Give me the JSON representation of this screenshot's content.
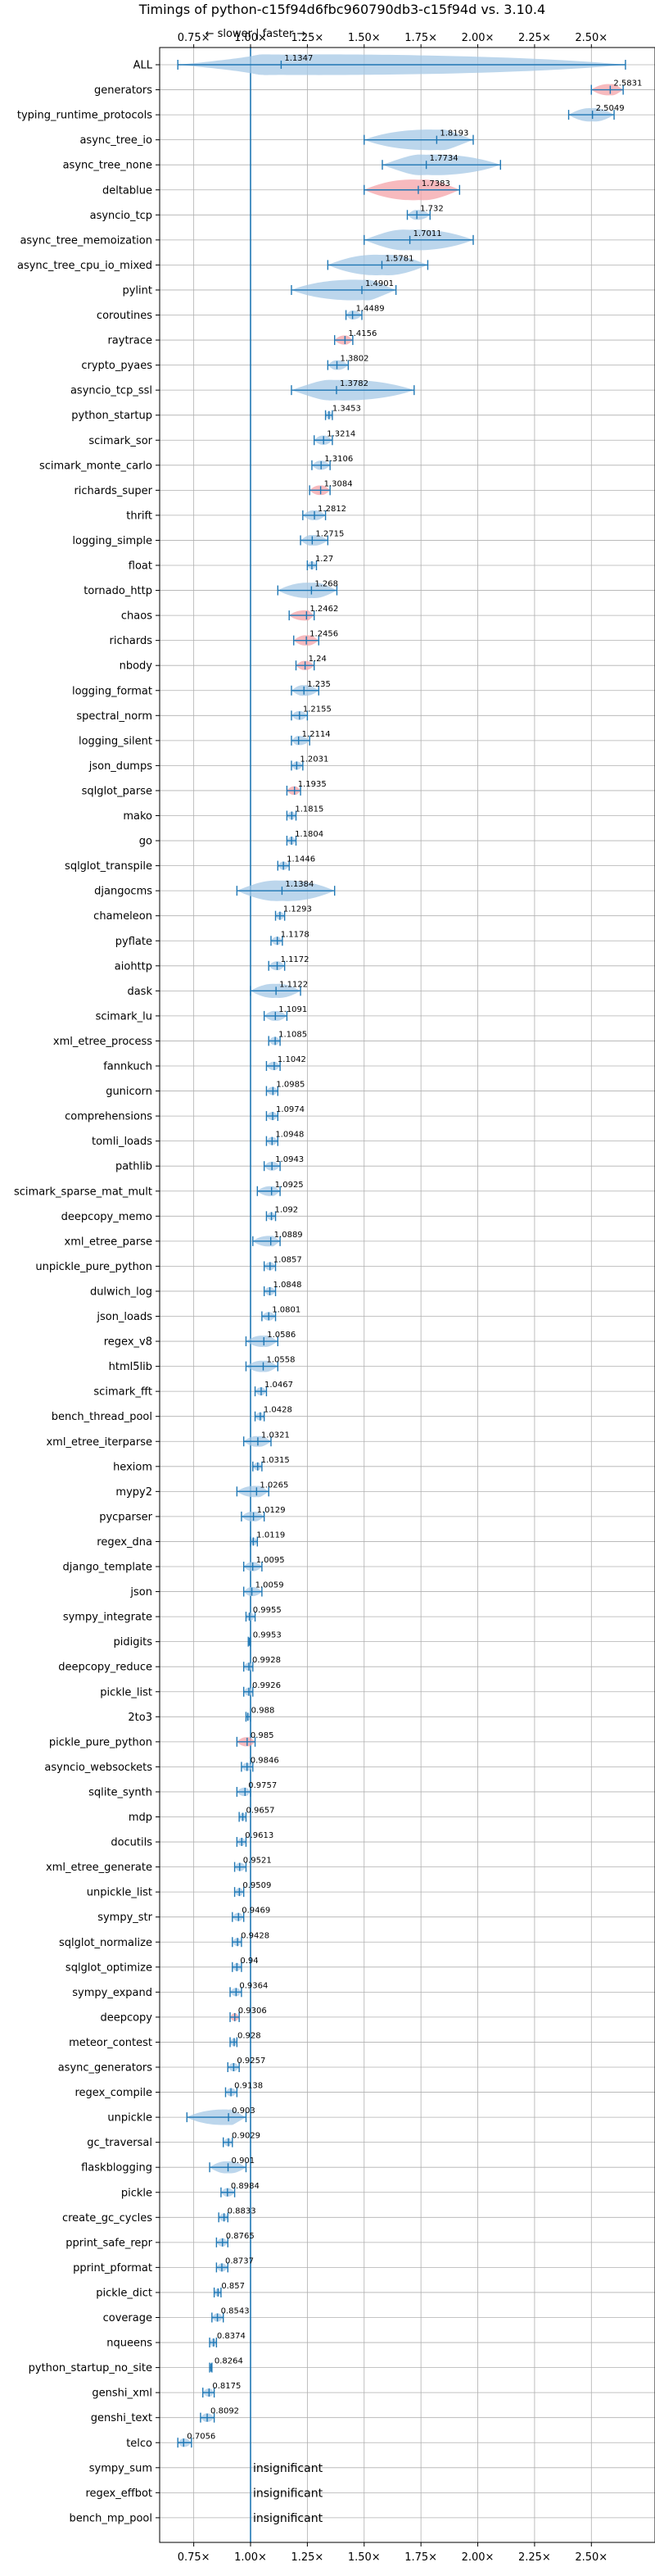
{
  "chart_data": {
    "type": "violin",
    "title": "Timings of python-c15f94d6fbc960790db3-c15f94d vs. 3.10.4",
    "direction_note": "← slower | faster →",
    "xlim": [
      0.6,
      2.78
    ],
    "x_ticks": [
      0.75,
      1.0,
      1.25,
      1.5,
      1.75,
      2.0,
      2.25,
      2.5
    ],
    "x_tick_labels": [
      "0.75×",
      "1.00×",
      "1.25×",
      "1.50×",
      "1.75×",
      "2.00×",
      "2.25×",
      "2.50×"
    ],
    "reference_line": 1.0,
    "grid": true,
    "colors": {
      "faster": "#1f77b4",
      "fill": "#a6c8e6",
      "slower_fill": "#f4a3a8",
      "reference": "#1f77b4"
    },
    "insignificant_text": "insignificant",
    "benchmarks": [
      {
        "name": "ALL",
        "value": 1.1347,
        "lo": 0.68,
        "hi": 2.65,
        "slower": false
      },
      {
        "name": "generators",
        "value": 2.5831,
        "lo": 2.5,
        "hi": 2.64,
        "slower": true
      },
      {
        "name": "typing_runtime_protocols",
        "value": 2.5049,
        "lo": 2.4,
        "hi": 2.6,
        "slower": false
      },
      {
        "name": "async_tree_io",
        "value": 1.8193,
        "lo": 1.5,
        "hi": 1.98,
        "slower": false
      },
      {
        "name": "async_tree_none",
        "value": 1.7734,
        "lo": 1.58,
        "hi": 2.1,
        "slower": false
      },
      {
        "name": "deltablue",
        "value": 1.7383,
        "lo": 1.5,
        "hi": 1.92,
        "slower": true
      },
      {
        "name": "asyncio_tcp",
        "value": 1.732,
        "lo": 1.69,
        "hi": 1.79,
        "slower": false
      },
      {
        "name": "async_tree_memoization",
        "value": 1.7011,
        "lo": 1.5,
        "hi": 1.98,
        "slower": false
      },
      {
        "name": "async_tree_cpu_io_mixed",
        "value": 1.5781,
        "lo": 1.34,
        "hi": 1.78,
        "slower": false
      },
      {
        "name": "pylint",
        "value": 1.4901,
        "lo": 1.18,
        "hi": 1.64,
        "slower": false
      },
      {
        "name": "coroutines",
        "value": 1.4489,
        "lo": 1.42,
        "hi": 1.49,
        "slower": false
      },
      {
        "name": "raytrace",
        "value": 1.4156,
        "lo": 1.37,
        "hi": 1.45,
        "slower": true
      },
      {
        "name": "crypto_pyaes",
        "value": 1.3802,
        "lo": 1.34,
        "hi": 1.43,
        "slower": false
      },
      {
        "name": "asyncio_tcp_ssl",
        "value": 1.3782,
        "lo": 1.18,
        "hi": 1.72,
        "slower": false
      },
      {
        "name": "python_startup",
        "value": 1.3453,
        "lo": 1.33,
        "hi": 1.36,
        "slower": false
      },
      {
        "name": "scimark_sor",
        "value": 1.3214,
        "lo": 1.28,
        "hi": 1.36,
        "slower": false
      },
      {
        "name": "scimark_monte_carlo",
        "value": 1.3106,
        "lo": 1.27,
        "hi": 1.35,
        "slower": false
      },
      {
        "name": "richards_super",
        "value": 1.3084,
        "lo": 1.26,
        "hi": 1.35,
        "slower": true
      },
      {
        "name": "thrift",
        "value": 1.2812,
        "lo": 1.23,
        "hi": 1.33,
        "slower": false
      },
      {
        "name": "logging_simple",
        "value": 1.2715,
        "lo": 1.22,
        "hi": 1.34,
        "slower": false
      },
      {
        "name": "float",
        "value": 1.27,
        "lo": 1.25,
        "hi": 1.29,
        "slower": false
      },
      {
        "name": "tornado_http",
        "value": 1.268,
        "lo": 1.12,
        "hi": 1.38,
        "slower": false
      },
      {
        "name": "chaos",
        "value": 1.2462,
        "lo": 1.17,
        "hi": 1.28,
        "slower": true
      },
      {
        "name": "richards",
        "value": 1.2456,
        "lo": 1.19,
        "hi": 1.3,
        "slower": true
      },
      {
        "name": "nbody",
        "value": 1.24,
        "lo": 1.2,
        "hi": 1.28,
        "slower": true
      },
      {
        "name": "logging_format",
        "value": 1.235,
        "lo": 1.18,
        "hi": 1.3,
        "slower": false
      },
      {
        "name": "spectral_norm",
        "value": 1.2155,
        "lo": 1.18,
        "hi": 1.25,
        "slower": false
      },
      {
        "name": "logging_silent",
        "value": 1.2114,
        "lo": 1.18,
        "hi": 1.26,
        "slower": false
      },
      {
        "name": "json_dumps",
        "value": 1.2031,
        "lo": 1.18,
        "hi": 1.23,
        "slower": false
      },
      {
        "name": "sqlglot_parse",
        "value": 1.1935,
        "lo": 1.16,
        "hi": 1.22,
        "slower": true
      },
      {
        "name": "mako",
        "value": 1.1815,
        "lo": 1.16,
        "hi": 1.2,
        "slower": false
      },
      {
        "name": "go",
        "value": 1.1804,
        "lo": 1.16,
        "hi": 1.2,
        "slower": false
      },
      {
        "name": "sqlglot_transpile",
        "value": 1.1446,
        "lo": 1.12,
        "hi": 1.17,
        "slower": false
      },
      {
        "name": "djangocms",
        "value": 1.1384,
        "lo": 0.94,
        "hi": 1.37,
        "slower": false
      },
      {
        "name": "chameleon",
        "value": 1.1293,
        "lo": 1.11,
        "hi": 1.15,
        "slower": false
      },
      {
        "name": "pyflate",
        "value": 1.1178,
        "lo": 1.09,
        "hi": 1.14,
        "slower": false
      },
      {
        "name": "aiohttp",
        "value": 1.1172,
        "lo": 1.08,
        "hi": 1.15,
        "slower": false
      },
      {
        "name": "dask",
        "value": 1.1122,
        "lo": 1.0,
        "hi": 1.22,
        "slower": false
      },
      {
        "name": "scimark_lu",
        "value": 1.1091,
        "lo": 1.06,
        "hi": 1.16,
        "slower": false
      },
      {
        "name": "xml_etree_process",
        "value": 1.1085,
        "lo": 1.08,
        "hi": 1.13,
        "slower": false
      },
      {
        "name": "fannkuch",
        "value": 1.1042,
        "lo": 1.07,
        "hi": 1.13,
        "slower": false
      },
      {
        "name": "gunicorn",
        "value": 1.0985,
        "lo": 1.07,
        "hi": 1.12,
        "slower": false
      },
      {
        "name": "comprehensions",
        "value": 1.0974,
        "lo": 1.07,
        "hi": 1.12,
        "slower": false
      },
      {
        "name": "tomli_loads",
        "value": 1.0948,
        "lo": 1.07,
        "hi": 1.12,
        "slower": false
      },
      {
        "name": "pathlib",
        "value": 1.0943,
        "lo": 1.06,
        "hi": 1.13,
        "slower": false
      },
      {
        "name": "scimark_sparse_mat_mult",
        "value": 1.0925,
        "lo": 1.03,
        "hi": 1.13,
        "slower": false
      },
      {
        "name": "deepcopy_memo",
        "value": 1.092,
        "lo": 1.07,
        "hi": 1.11,
        "slower": false
      },
      {
        "name": "xml_etree_parse",
        "value": 1.0889,
        "lo": 1.01,
        "hi": 1.13,
        "slower": false
      },
      {
        "name": "unpickle_pure_python",
        "value": 1.0857,
        "lo": 1.06,
        "hi": 1.11,
        "slower": false
      },
      {
        "name": "dulwich_log",
        "value": 1.0848,
        "lo": 1.06,
        "hi": 1.11,
        "slower": false
      },
      {
        "name": "json_loads",
        "value": 1.0801,
        "lo": 1.05,
        "hi": 1.11,
        "slower": false
      },
      {
        "name": "regex_v8",
        "value": 1.0586,
        "lo": 0.98,
        "hi": 1.12,
        "slower": false
      },
      {
        "name": "html5lib",
        "value": 1.0558,
        "lo": 0.98,
        "hi": 1.12,
        "slower": false
      },
      {
        "name": "scimark_fft",
        "value": 1.0467,
        "lo": 1.02,
        "hi": 1.07,
        "slower": false
      },
      {
        "name": "bench_thread_pool",
        "value": 1.0428,
        "lo": 1.02,
        "hi": 1.06,
        "slower": false
      },
      {
        "name": "xml_etree_iterparse",
        "value": 1.0321,
        "lo": 0.97,
        "hi": 1.09,
        "slower": false
      },
      {
        "name": "hexiom",
        "value": 1.0315,
        "lo": 1.01,
        "hi": 1.05,
        "slower": false
      },
      {
        "name": "mypy2",
        "value": 1.0265,
        "lo": 0.94,
        "hi": 1.08,
        "slower": false
      },
      {
        "name": "pycparser",
        "value": 1.0129,
        "lo": 0.96,
        "hi": 1.06,
        "slower": false
      },
      {
        "name": "regex_dna",
        "value": 1.0119,
        "lo": 1.0,
        "hi": 1.03,
        "slower": false
      },
      {
        "name": "django_template",
        "value": 1.0095,
        "lo": 0.97,
        "hi": 1.05,
        "slower": false
      },
      {
        "name": "json",
        "value": 1.0059,
        "lo": 0.97,
        "hi": 1.05,
        "slower": false
      },
      {
        "name": "sympy_integrate",
        "value": 0.9955,
        "lo": 0.98,
        "hi": 1.02,
        "slower": false
      },
      {
        "name": "pidigits",
        "value": 0.9953,
        "lo": 0.99,
        "hi": 1.0,
        "slower": false
      },
      {
        "name": "deepcopy_reduce",
        "value": 0.9928,
        "lo": 0.97,
        "hi": 1.01,
        "slower": false
      },
      {
        "name": "pickle_list",
        "value": 0.9926,
        "lo": 0.97,
        "hi": 1.01,
        "slower": false
      },
      {
        "name": "2to3",
        "value": 0.988,
        "lo": 0.98,
        "hi": 1.0,
        "slower": false
      },
      {
        "name": "pickle_pure_python",
        "value": 0.985,
        "lo": 0.94,
        "hi": 1.02,
        "slower": true
      },
      {
        "name": "asyncio_websockets",
        "value": 0.9846,
        "lo": 0.96,
        "hi": 1.01,
        "slower": false
      },
      {
        "name": "sqlite_synth",
        "value": 0.9757,
        "lo": 0.94,
        "hi": 1.0,
        "slower": false
      },
      {
        "name": "mdp",
        "value": 0.9657,
        "lo": 0.95,
        "hi": 0.98,
        "slower": false
      },
      {
        "name": "docutils",
        "value": 0.9613,
        "lo": 0.94,
        "hi": 0.98,
        "slower": false
      },
      {
        "name": "xml_etree_generate",
        "value": 0.9521,
        "lo": 0.93,
        "hi": 0.98,
        "slower": false
      },
      {
        "name": "unpickle_list",
        "value": 0.9509,
        "lo": 0.93,
        "hi": 0.97,
        "slower": false
      },
      {
        "name": "sympy_str",
        "value": 0.9469,
        "lo": 0.92,
        "hi": 0.97,
        "slower": false
      },
      {
        "name": "sqlglot_normalize",
        "value": 0.9428,
        "lo": 0.92,
        "hi": 0.96,
        "slower": false
      },
      {
        "name": "sqlglot_optimize",
        "value": 0.94,
        "lo": 0.92,
        "hi": 0.96,
        "slower": false
      },
      {
        "name": "sympy_expand",
        "value": 0.9364,
        "lo": 0.91,
        "hi": 0.96,
        "slower": false
      },
      {
        "name": "deepcopy",
        "value": 0.9306,
        "lo": 0.91,
        "hi": 0.95,
        "slower": true
      },
      {
        "name": "meteor_contest",
        "value": 0.928,
        "lo": 0.91,
        "hi": 0.94,
        "slower": false
      },
      {
        "name": "async_generators",
        "value": 0.9257,
        "lo": 0.9,
        "hi": 0.95,
        "slower": false
      },
      {
        "name": "regex_compile",
        "value": 0.9138,
        "lo": 0.89,
        "hi": 0.94,
        "slower": false
      },
      {
        "name": "unpickle",
        "value": 0.903,
        "lo": 0.72,
        "hi": 0.98,
        "slower": false
      },
      {
        "name": "gc_traversal",
        "value": 0.9029,
        "lo": 0.88,
        "hi": 0.92,
        "slower": false
      },
      {
        "name": "flaskblogging",
        "value": 0.901,
        "lo": 0.82,
        "hi": 0.98,
        "slower": false
      },
      {
        "name": "pickle",
        "value": 0.8984,
        "lo": 0.87,
        "hi": 0.93,
        "slower": false
      },
      {
        "name": "create_gc_cycles",
        "value": 0.8833,
        "lo": 0.86,
        "hi": 0.9,
        "slower": false
      },
      {
        "name": "pprint_safe_repr",
        "value": 0.8765,
        "lo": 0.85,
        "hi": 0.9,
        "slower": false
      },
      {
        "name": "pprint_pformat",
        "value": 0.8737,
        "lo": 0.85,
        "hi": 0.9,
        "slower": false
      },
      {
        "name": "pickle_dict",
        "value": 0.857,
        "lo": 0.84,
        "hi": 0.87,
        "slower": false
      },
      {
        "name": "coverage",
        "value": 0.8543,
        "lo": 0.83,
        "hi": 0.88,
        "slower": false
      },
      {
        "name": "nqueens",
        "value": 0.8374,
        "lo": 0.82,
        "hi": 0.85,
        "slower": false
      },
      {
        "name": "python_startup_no_site",
        "value": 0.8264,
        "lo": 0.82,
        "hi": 0.83,
        "slower": false
      },
      {
        "name": "genshi_xml",
        "value": 0.8175,
        "lo": 0.79,
        "hi": 0.84,
        "slower": false
      },
      {
        "name": "genshi_text",
        "value": 0.8092,
        "lo": 0.78,
        "hi": 0.84,
        "slower": false
      },
      {
        "name": "telco",
        "value": 0.7056,
        "lo": 0.68,
        "hi": 0.74,
        "slower": false
      },
      {
        "name": "sympy_sum",
        "value": null,
        "insignificant": true
      },
      {
        "name": "regex_effbot",
        "value": null,
        "insignificant": true
      },
      {
        "name": "bench_mp_pool",
        "value": null,
        "insignificant": true
      }
    ]
  }
}
